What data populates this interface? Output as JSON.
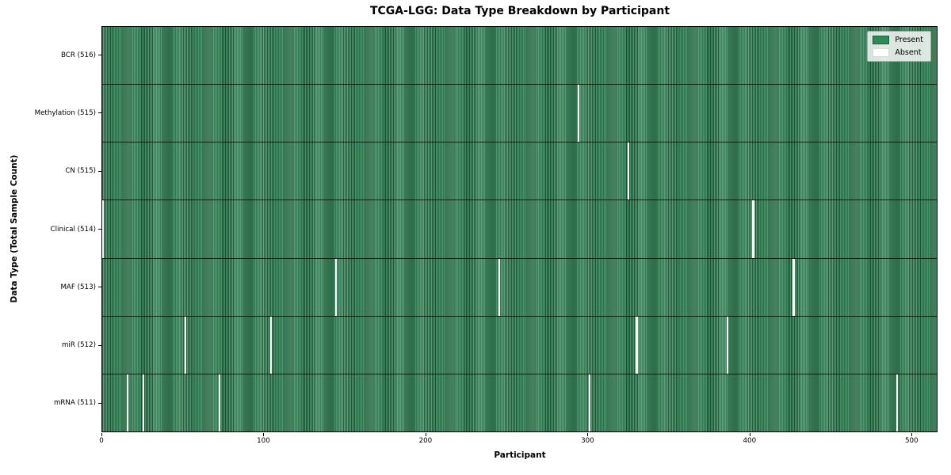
{
  "title": "TCGA-LGG: Data Type Breakdown by Participant",
  "chart_data": {
    "type": "heatmap",
    "title": "TCGA-LGG: Data Type Breakdown by Participant",
    "xlabel": "Participant",
    "ylabel": "Data Type (Total Sample Count)",
    "x_ticks": [
      0,
      100,
      200,
      300,
      400,
      500
    ],
    "x_range": [
      0,
      516
    ],
    "total_participants": 516,
    "grid": false,
    "legend_position": "upper right",
    "legend": [
      {
        "label": "Present",
        "value": "present",
        "color": "#2e8b57"
      },
      {
        "label": "Absent",
        "value": "absent",
        "color": "#ffffff"
      }
    ],
    "colors": {
      "present_fill": "#2e8b57",
      "present_edge": "#1d5c3a",
      "absent_fill": "#ffffff",
      "axis": "#000000"
    },
    "rows": [
      {
        "label": "BCR (516)",
        "data_type": "BCR",
        "present_count": 516,
        "absent_participants": []
      },
      {
        "label": "Methylation (515)",
        "data_type": "Methylation",
        "present_count": 515,
        "absent_participants": [
          294
        ]
      },
      {
        "label": "CN (515)",
        "data_type": "CN",
        "present_count": 515,
        "absent_participants": [
          325
        ]
      },
      {
        "label": "Clinical (514)",
        "data_type": "Clinical",
        "present_count": 514,
        "absent_participants": [
          0,
          402
        ]
      },
      {
        "label": "MAF (513)",
        "data_type": "MAF",
        "present_count": 513,
        "absent_participants": [
          144,
          245,
          427
        ]
      },
      {
        "label": "miR (512)",
        "data_type": "miR",
        "present_count": 512,
        "absent_participants": [
          51,
          104,
          330,
          386
        ]
      },
      {
        "label": "mRNA (511)",
        "data_type": "mRNA",
        "present_count": 511,
        "absent_participants": [
          15,
          25,
          72,
          301,
          491
        ]
      }
    ]
  }
}
